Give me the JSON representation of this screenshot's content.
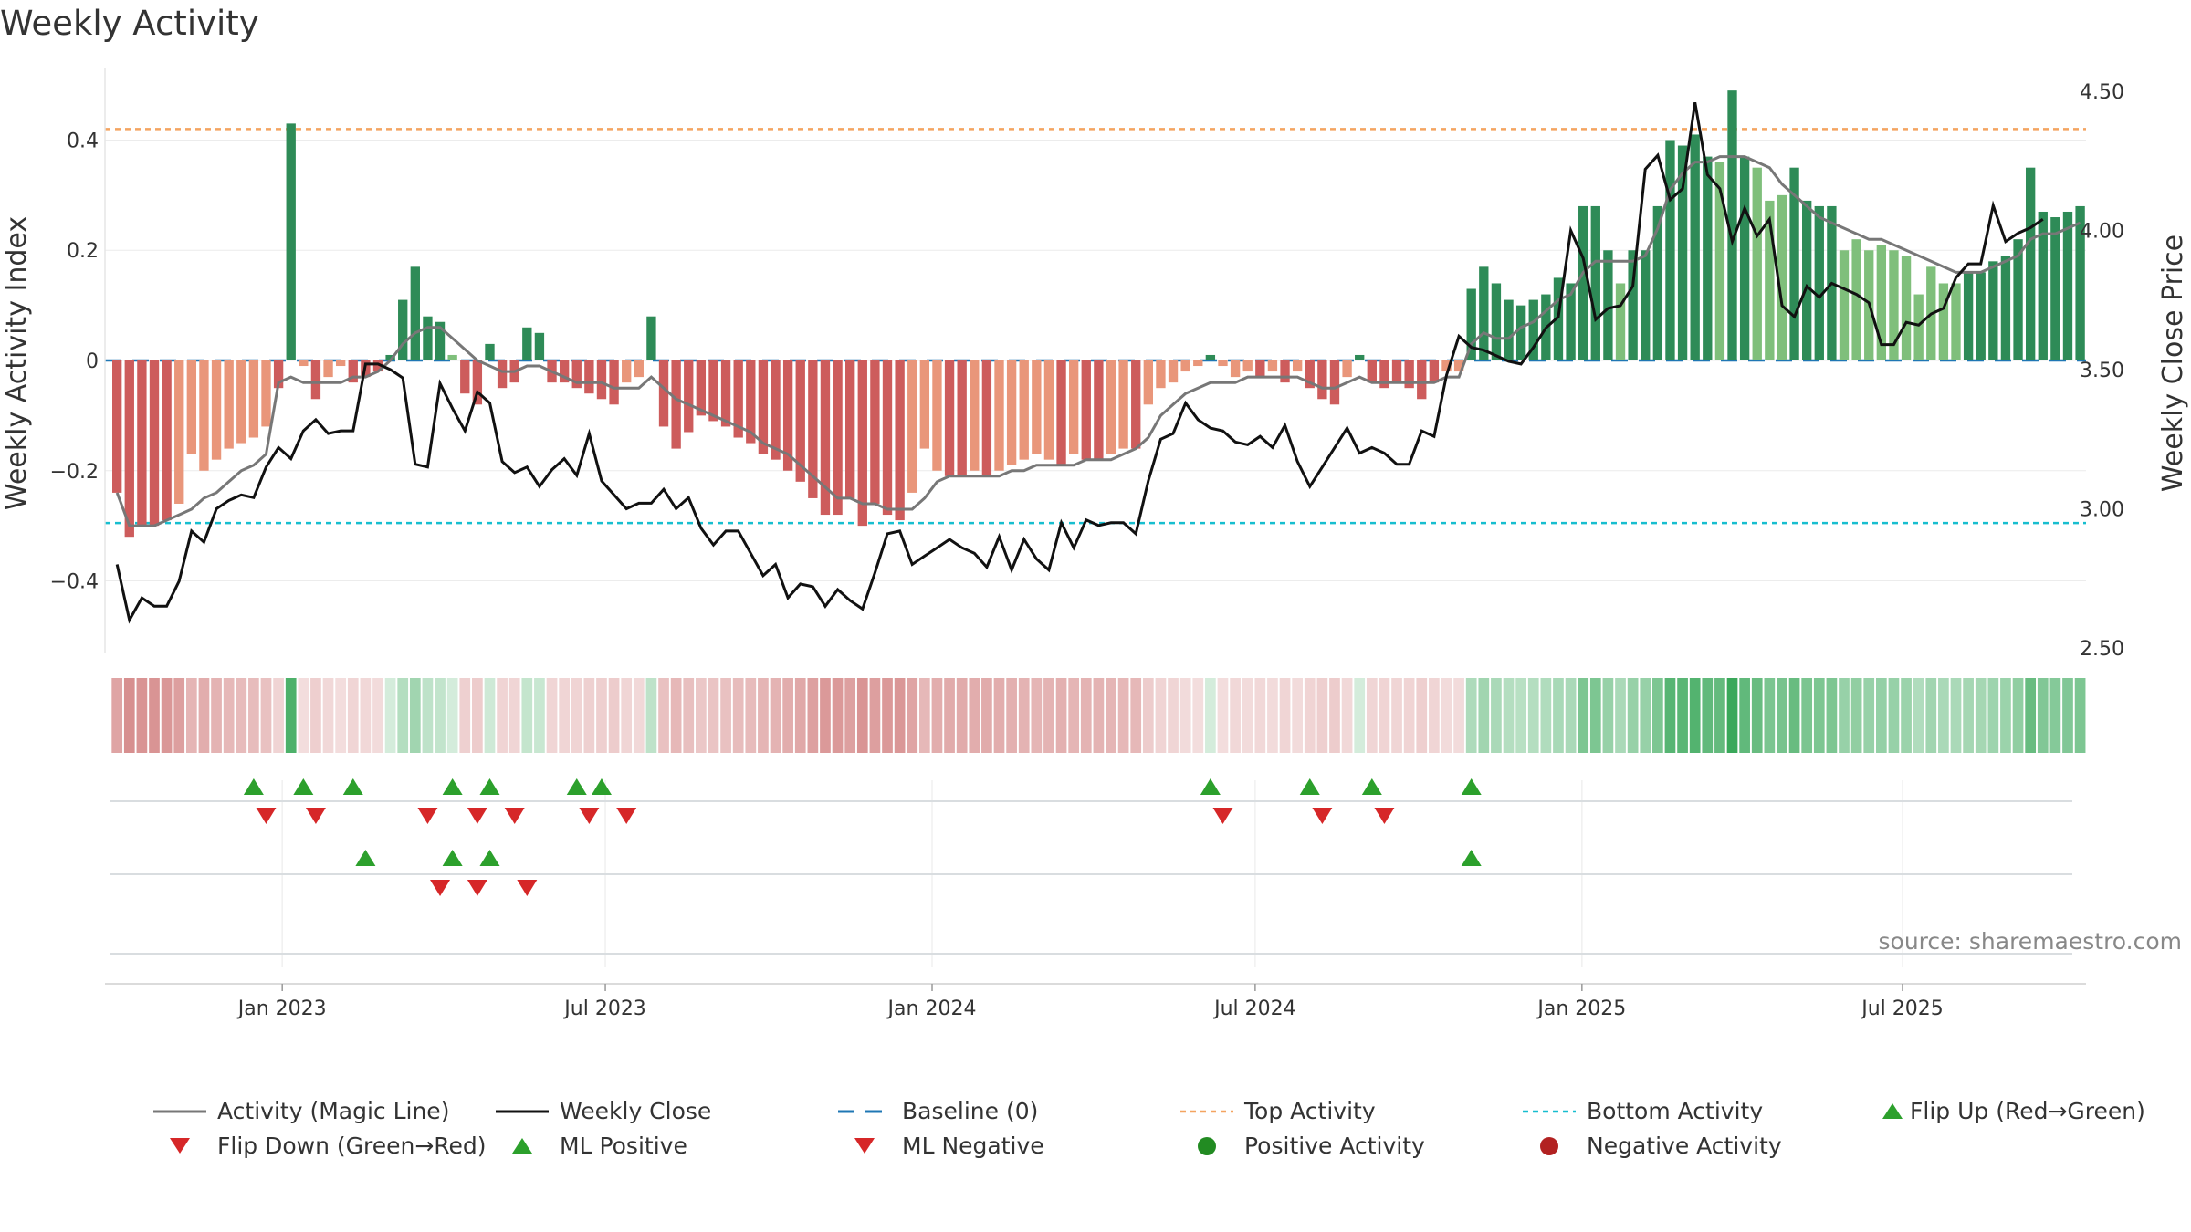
{
  "title": "Weekly Activity",
  "source": "source: sharemaestro.com",
  "colors": {
    "green_strong": "#2e8b57",
    "green_light": "#7fbf7b",
    "red_strong": "#cd5c5c",
    "red_light": "#e9967a",
    "magic_line": "#777777",
    "close_line": "#111111",
    "baseline": "#1f77b4",
    "top": "#f4a460",
    "bottom": "#17becf",
    "flip_up": "#2ca02c",
    "flip_down": "#d62728",
    "pos_dot": "#228b22",
    "neg_dot": "#b22222"
  },
  "chart_data": {
    "type": "bar",
    "start_week": "2022-10-03",
    "left_axis": {
      "label": "Weekly Activity Index",
      "ylim": [
        -0.53,
        0.53
      ],
      "ticks": [
        0.4,
        0.2,
        0,
        -0.2,
        -0.4
      ],
      "tick_labels": [
        "0.4",
        "0.2",
        "0",
        "−0.2",
        "−0.4"
      ]
    },
    "right_axis": {
      "label": "Weekly Close Price",
      "ylim": [
        2.5,
        4.5
      ],
      "ticks": [
        4.5,
        4.0,
        3.5,
        3.0,
        2.5
      ],
      "tick_labels": [
        "4.50",
        "4.00",
        "3.50",
        "3.00",
        "2.50"
      ]
    },
    "x_ticks": [
      {
        "label": "Jan 2023",
        "week": 13.3
      },
      {
        "label": "Jul 2023",
        "week": 39.3
      },
      {
        "label": "Jan 2024",
        "week": 65.6
      },
      {
        "label": "Jul 2024",
        "week": 91.6
      },
      {
        "label": "Jan 2025",
        "week": 117.9
      },
      {
        "label": "Jul 2025",
        "week": 143.7
      }
    ],
    "top_activity": 0.42,
    "bottom_activity": -0.295,
    "baseline": 0,
    "activity": [
      -0.24,
      -0.32,
      -0.3,
      -0.3,
      -0.29,
      -0.26,
      -0.17,
      -0.2,
      -0.18,
      -0.16,
      -0.15,
      -0.14,
      -0.12,
      -0.05,
      0.43,
      -0.01,
      -0.07,
      -0.03,
      -0.01,
      -0.04,
      -0.03,
      -0.02,
      0.01,
      0.11,
      0.17,
      0.08,
      0.07,
      0.01,
      -0.06,
      -0.08,
      0.03,
      -0.05,
      -0.04,
      0.06,
      0.05,
      -0.04,
      -0.04,
      -0.05,
      -0.06,
      -0.07,
      -0.08,
      -0.04,
      -0.03,
      0.08,
      -0.12,
      -0.16,
      -0.13,
      -0.1,
      -0.11,
      -0.12,
      -0.14,
      -0.15,
      -0.17,
      -0.18,
      -0.2,
      -0.22,
      -0.25,
      -0.28,
      -0.28,
      -0.25,
      -0.3,
      -0.26,
      -0.28,
      -0.29,
      -0.24,
      -0.16,
      -0.2,
      -0.21,
      -0.21,
      -0.2,
      -0.21,
      -0.2,
      -0.19,
      -0.18,
      -0.17,
      -0.18,
      -0.19,
      -0.17,
      -0.18,
      -0.18,
      -0.17,
      -0.16,
      -0.16,
      -0.08,
      -0.05,
      -0.04,
      -0.02,
      -0.01,
      0.01,
      -0.01,
      -0.03,
      -0.02,
      -0.03,
      -0.02,
      -0.04,
      -0.02,
      -0.05,
      -0.07,
      -0.08,
      -0.03,
      0.01,
      -0.04,
      -0.05,
      -0.04,
      -0.05,
      -0.07,
      -0.04,
      -0.02,
      -0.02,
      0.13,
      0.17,
      0.14,
      0.11,
      0.1,
      0.11,
      0.12,
      0.15,
      0.14,
      0.28,
      0.28,
      0.2,
      0.14,
      0.2,
      0.2,
      0.28,
      0.4,
      0.39,
      0.41,
      0.37,
      0.36,
      0.49,
      0.37,
      0.35,
      0.29,
      0.3,
      0.35,
      0.29,
      0.28,
      0.28,
      0.2,
      0.22,
      0.2,
      0.21,
      0.2,
      0.19,
      0.12,
      0.17,
      0.14,
      0.14,
      0.16,
      0.16,
      0.18,
      0.19,
      0.22,
      0.35,
      0.27,
      0.26,
      0.27,
      0.28
    ],
    "magic_line": [
      -0.24,
      -0.3,
      -0.3,
      -0.3,
      -0.29,
      -0.28,
      -0.27,
      -0.25,
      -0.24,
      -0.22,
      -0.2,
      -0.19,
      -0.17,
      -0.04,
      -0.03,
      -0.04,
      -0.04,
      -0.04,
      -0.04,
      -0.03,
      -0.03,
      -0.02,
      0.0,
      0.03,
      0.05,
      0.06,
      0.06,
      0.04,
      0.02,
      0.0,
      -0.01,
      -0.02,
      -0.02,
      -0.01,
      -0.01,
      -0.02,
      -0.03,
      -0.04,
      -0.04,
      -0.04,
      -0.05,
      -0.05,
      -0.05,
      -0.03,
      -0.05,
      -0.07,
      -0.08,
      -0.09,
      -0.1,
      -0.11,
      -0.12,
      -0.13,
      -0.15,
      -0.16,
      -0.17,
      -0.19,
      -0.21,
      -0.23,
      -0.25,
      -0.25,
      -0.26,
      -0.26,
      -0.27,
      -0.27,
      -0.27,
      -0.25,
      -0.22,
      -0.21,
      -0.21,
      -0.21,
      -0.21,
      -0.21,
      -0.2,
      -0.2,
      -0.19,
      -0.19,
      -0.19,
      -0.19,
      -0.18,
      -0.18,
      -0.18,
      -0.17,
      -0.16,
      -0.14,
      -0.1,
      -0.08,
      -0.06,
      -0.05,
      -0.04,
      -0.04,
      -0.04,
      -0.03,
      -0.03,
      -0.03,
      -0.03,
      -0.03,
      -0.04,
      -0.05,
      -0.05,
      -0.04,
      -0.03,
      -0.04,
      -0.04,
      -0.04,
      -0.04,
      -0.04,
      -0.04,
      -0.03,
      -0.03,
      0.03,
      0.05,
      0.04,
      0.04,
      0.06,
      0.07,
      0.09,
      0.11,
      0.12,
      0.16,
      0.18,
      0.18,
      0.18,
      0.18,
      0.19,
      0.24,
      0.31,
      0.34,
      0.36,
      0.36,
      0.37,
      0.37,
      0.37,
      0.36,
      0.35,
      0.32,
      0.3,
      0.28,
      0.26,
      0.25,
      0.24,
      0.23,
      0.22,
      0.22,
      0.21,
      0.2,
      0.19,
      0.18,
      0.17,
      0.16,
      0.16,
      0.16,
      0.17,
      0.18,
      0.19,
      0.22,
      0.23,
      0.23,
      0.24,
      0.25
    ],
    "weekly_close": [
      2.8,
      2.6,
      2.68,
      2.65,
      2.65,
      2.74,
      2.92,
      2.88,
      3.0,
      3.03,
      3.05,
      3.04,
      3.15,
      3.22,
      3.18,
      3.28,
      3.32,
      3.27,
      3.28,
      3.28,
      3.52,
      3.52,
      3.5,
      3.47,
      3.16,
      3.15,
      3.45,
      3.36,
      3.28,
      3.42,
      3.38,
      3.17,
      3.13,
      3.15,
      3.08,
      3.14,
      3.18,
      3.12,
      3.27,
      3.1,
      3.05,
      3.0,
      3.02,
      3.02,
      3.07,
      3.0,
      3.04,
      2.93,
      2.87,
      2.92,
      2.92,
      2.84,
      2.76,
      2.8,
      2.68,
      2.73,
      2.72,
      2.65,
      2.71,
      2.67,
      2.64,
      2.77,
      2.91,
      2.92,
      2.8,
      2.83,
      2.86,
      2.89,
      2.86,
      2.84,
      2.79,
      2.9,
      2.78,
      2.89,
      2.82,
      2.78,
      2.95,
      2.86,
      2.96,
      2.94,
      2.95,
      2.95,
      2.91,
      3.1,
      3.25,
      3.27,
      3.38,
      3.32,
      3.29,
      3.28,
      3.24,
      3.23,
      3.26,
      3.22,
      3.3,
      3.17,
      3.08,
      3.15,
      3.22,
      3.29,
      3.2,
      3.22,
      3.2,
      3.16,
      3.16,
      3.28,
      3.26,
      3.48,
      3.62,
      3.58,
      3.57,
      3.55,
      3.53,
      3.52,
      3.58,
      3.65,
      3.69,
      4.0,
      3.9,
      3.68,
      3.72,
      3.73,
      3.8,
      4.22,
      4.27,
      4.11,
      4.15,
      4.46,
      4.2,
      4.15,
      3.96,
      4.08,
      3.98,
      4.04,
      3.73,
      3.69,
      3.8,
      3.76,
      3.81,
      3.79,
      3.77,
      3.74,
      3.59,
      3.59,
      3.67,
      3.66,
      3.7,
      3.72,
      3.83,
      3.88,
      3.88,
      4.09,
      3.96,
      3.99,
      4.01,
      4.04
    ],
    "flip_up_row1": [
      11,
      15,
      19,
      27,
      30,
      37,
      39,
      88,
      96,
      101,
      109
    ],
    "flip_down_row1": [
      12,
      16,
      25,
      29,
      32,
      38,
      41,
      89,
      97,
      102
    ],
    "flip_up_row2": [
      20,
      27,
      30,
      109
    ],
    "flip_down_row2": [
      26,
      29,
      33
    ],
    "legend": [
      "Activity (Magic Line)",
      "Weekly Close",
      "Baseline (0)",
      "Top Activity",
      "Bottom Activity",
      "Flip Up (Red→Green)",
      "Flip Down (Green→Red)",
      "ML Positive",
      "ML Negative",
      "Positive Activity",
      "Negative Activity"
    ]
  }
}
